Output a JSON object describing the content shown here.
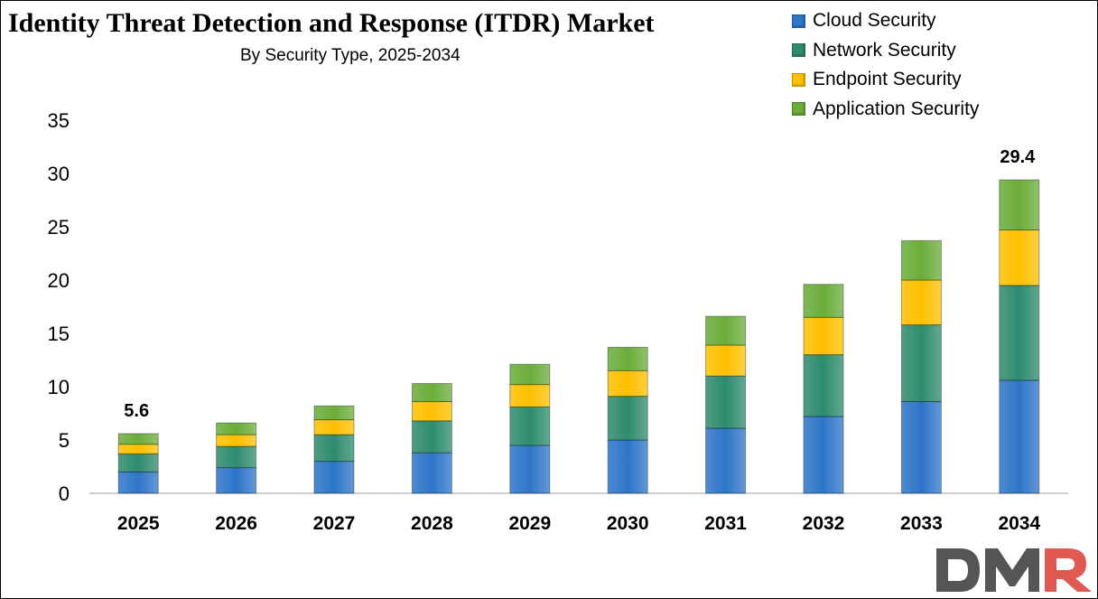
{
  "chart_data": {
    "type": "bar",
    "stacked": true,
    "title": "Identity Threat Detection and Response (ITDR) Market",
    "subtitle": "By Security Type, 2025-2034",
    "categories": [
      "2025",
      "2026",
      "2027",
      "2028",
      "2029",
      "2030",
      "2031",
      "2032",
      "2033",
      "2034"
    ],
    "series": [
      {
        "name": "Cloud Security",
        "color": "#2e75c8",
        "values": [
          2.0,
          2.4,
          3.0,
          3.8,
          4.5,
          5.0,
          6.1,
          7.2,
          8.6,
          10.6
        ]
      },
      {
        "name": "Network Security",
        "color": "#2e8b6e",
        "values": [
          1.7,
          2.0,
          2.5,
          3.0,
          3.6,
          4.1,
          4.9,
          5.8,
          7.2,
          8.9
        ]
      },
      {
        "name": "Endpoint Security",
        "color": "#ffc000",
        "values": [
          0.9,
          1.1,
          1.4,
          1.8,
          2.1,
          2.4,
          2.9,
          3.5,
          4.2,
          5.2
        ]
      },
      {
        "name": "Application Security",
        "color": "#6aad3a",
        "values": [
          1.0,
          1.1,
          1.3,
          1.7,
          1.9,
          2.2,
          2.7,
          3.1,
          3.7,
          4.7
        ]
      }
    ],
    "totals_labels": [
      {
        "category": "2025",
        "text": "5.6"
      },
      {
        "category": "2034",
        "text": "29.4"
      }
    ],
    "ylim": [
      0,
      35
    ],
    "yticks": [
      "0",
      "5",
      "10",
      "15",
      "20",
      "25",
      "30",
      "35"
    ],
    "grid": false,
    "legend_position": "top-right"
  },
  "logo": {
    "text": "DMR",
    "colors": [
      "#555555",
      "#d9534f"
    ]
  }
}
